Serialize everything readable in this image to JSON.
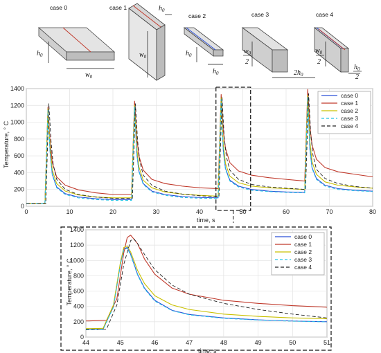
{
  "schematics": [
    {
      "title": "case 0",
      "dims": [
        "h0",
        "w0"
      ]
    },
    {
      "title": "case 1",
      "dims": [
        "h0",
        "w0"
      ]
    },
    {
      "title": "case 2",
      "dims": [
        "h0",
        "h0"
      ]
    },
    {
      "title": "case 3",
      "dims": [
        "w0/2",
        "2h0"
      ]
    },
    {
      "title": "case 4",
      "dims": [
        "w0/2",
        "h0/2"
      ]
    }
  ],
  "colors": {
    "case 0": "#2b4fd6",
    "case 1": "#c0392b",
    "case 2": "#c9c000",
    "case 3": "#27c3e6",
    "case 4": "#222222"
  },
  "chart_data": [
    {
      "type": "line",
      "xlabel": "time, s",
      "ylabel": "Temperature, ° C",
      "xlim": [
        0,
        80
      ],
      "ylim": [
        0,
        1400
      ],
      "xticks": [
        0,
        10,
        20,
        30,
        40,
        50,
        60,
        70,
        80
      ],
      "yticks": [
        0,
        200,
        400,
        600,
        800,
        1000,
        1200,
        1400
      ],
      "grid": true,
      "legend": "top-right",
      "series": [
        {
          "name": "case 0",
          "x": [
            0,
            4.3,
            5.0,
            5.5,
            6,
            7,
            9,
            12,
            16,
            20,
            24.3,
            25.0,
            25.5,
            26,
            27,
            29,
            32,
            36,
            40,
            44.3,
            45.0,
            45.5,
            46,
            47,
            49,
            52,
            56,
            60,
            64.3,
            65.0,
            65.5,
            66,
            67,
            69,
            72,
            76,
            80
          ],
          "y": [
            30,
            30,
            1150,
            640,
            380,
            230,
            150,
            110,
            90,
            80,
            80,
            1190,
            640,
            420,
            270,
            180,
            140,
            115,
            105,
            100,
            1280,
            660,
            450,
            310,
            240,
            200,
            180,
            170,
            165,
            1310,
            680,
            460,
            330,
            250,
            210,
            190,
            180
          ]
        },
        {
          "name": "case 1",
          "x": [
            0,
            4.3,
            5.0,
            5.5,
            6,
            7,
            9,
            12,
            16,
            20,
            24.3,
            25.0,
            25.5,
            26,
            27,
            29,
            32,
            36,
            40,
            44.3,
            45.0,
            45.5,
            46,
            47,
            49,
            52,
            56,
            60,
            64.3,
            65.0,
            65.5,
            66,
            67,
            69,
            72,
            76,
            80
          ],
          "y": [
            30,
            30,
            1180,
            760,
            520,
            350,
            250,
            195,
            160,
            140,
            140,
            1250,
            820,
            600,
            430,
            320,
            270,
            240,
            220,
            210,
            1330,
            900,
            690,
            520,
            420,
            370,
            340,
            320,
            300,
            1390,
            950,
            730,
            560,
            460,
            410,
            380,
            350
          ]
        },
        {
          "name": "case 2",
          "x": [
            0,
            4.3,
            5.0,
            5.5,
            6,
            7,
            9,
            12,
            16,
            20,
            24.3,
            25.0,
            25.5,
            26,
            27,
            29,
            32,
            36,
            40,
            44.3,
            45.0,
            45.5,
            46,
            47,
            49,
            52,
            56,
            60,
            64.3,
            65.0,
            65.5,
            66,
            67,
            69,
            72,
            76,
            80
          ],
          "y": [
            30,
            30,
            1160,
            680,
            430,
            270,
            180,
            135,
            110,
            100,
            100,
            1200,
            700,
            470,
            310,
            220,
            170,
            145,
            130,
            120,
            1290,
            740,
            510,
            360,
            280,
            240,
            220,
            210,
            200,
            1320,
            770,
            530,
            380,
            290,
            250,
            230,
            215
          ]
        },
        {
          "name": "case 3",
          "x": [
            0,
            4.3,
            5.0,
            5.5,
            6,
            7,
            9,
            12,
            16,
            20,
            24.3,
            25.0,
            25.5,
            26,
            27,
            29,
            32,
            36,
            40,
            44.3,
            45.0,
            45.5,
            46,
            47,
            49,
            52,
            56,
            60,
            64.3,
            65.0,
            65.5,
            66,
            67,
            69,
            72,
            76,
            80
          ],
          "y": [
            30,
            30,
            1140,
            630,
            370,
            220,
            140,
            100,
            80,
            70,
            70,
            1180,
            630,
            410,
            260,
            170,
            130,
            105,
            95,
            95,
            1270,
            650,
            440,
            300,
            230,
            190,
            175,
            165,
            160,
            1300,
            670,
            450,
            320,
            240,
            200,
            185,
            175
          ]
        },
        {
          "name": "case 4",
          "x": [
            0,
            4.5,
            5.2,
            5.7,
            6.2,
            7,
            9,
            12,
            16,
            20,
            24.5,
            25.2,
            25.7,
            26.2,
            27,
            29,
            32,
            36,
            40,
            44.5,
            45.2,
            45.7,
            46.2,
            47,
            49,
            52,
            56,
            60,
            64.5,
            65.2,
            65.7,
            66.2,
            67,
            69,
            72,
            76,
            80
          ],
          "y": [
            30,
            30,
            1220,
            780,
            500,
            320,
            200,
            140,
            110,
            95,
            95,
            1220,
            780,
            540,
            370,
            250,
            180,
            145,
            125,
            115,
            1300,
            820,
            590,
            430,
            320,
            260,
            230,
            215,
            200,
            1340,
            850,
            610,
            440,
            330,
            270,
            235,
            215
          ]
        }
      ]
    },
    {
      "type": "line",
      "xlabel": "time, s",
      "ylabel": "Temperature, ° C",
      "xlim": [
        44,
        51
      ],
      "ylim": [
        0,
        1400
      ],
      "xticks": [
        44,
        45,
        46,
        47,
        48,
        49,
        50,
        51
      ],
      "yticks": [
        0,
        200,
        400,
        600,
        800,
        1000,
        1200,
        1400
      ],
      "grid": true,
      "legend": "top-right",
      "series": [
        {
          "name": "case 0",
          "x": [
            44,
            44.5,
            44.8,
            45.0,
            45.1,
            45.2,
            45.3,
            45.5,
            45.7,
            46.0,
            46.5,
            47.0,
            48,
            49,
            50,
            51
          ],
          "y": [
            100,
            105,
            400,
            950,
            1150,
            1170,
            1080,
            820,
            640,
            480,
            350,
            295,
            250,
            225,
            210,
            200
          ]
        },
        {
          "name": "case 1",
          "x": [
            44,
            44.6,
            44.9,
            45.1,
            45.2,
            45.3,
            45.5,
            45.7,
            46.0,
            46.5,
            47.0,
            48,
            49,
            50,
            51
          ],
          "y": [
            210,
            220,
            500,
            1100,
            1300,
            1330,
            1220,
            1020,
            820,
            640,
            560,
            480,
            440,
            410,
            390
          ]
        },
        {
          "name": "case 2",
          "x": [
            44,
            44.5,
            44.8,
            45.0,
            45.1,
            45.2,
            45.3,
            45.5,
            45.7,
            46.0,
            46.5,
            47.0,
            48,
            49,
            50,
            51
          ],
          "y": [
            110,
            115,
            420,
            970,
            1170,
            1190,
            1110,
            870,
            700,
            540,
            420,
            360,
            300,
            270,
            250,
            240
          ]
        },
        {
          "name": "case 3",
          "x": [
            44,
            44.5,
            44.8,
            45.0,
            45.1,
            45.2,
            45.3,
            45.5,
            45.7,
            46.0,
            46.5,
            47.0,
            48,
            49,
            50,
            51
          ],
          "y": [
            95,
            100,
            390,
            940,
            1140,
            1160,
            1070,
            810,
            630,
            470,
            345,
            290,
            245,
            222,
            208,
            198
          ]
        },
        {
          "name": "case 4",
          "x": [
            44,
            44.6,
            44.9,
            45.1,
            45.3,
            45.4,
            45.5,
            45.7,
            46.0,
            46.5,
            47.0,
            48,
            49,
            50,
            51
          ],
          "y": [
            100,
            105,
            420,
            950,
            1260,
            1280,
            1220,
            1080,
            880,
            680,
            560,
            440,
            360,
            300,
            250
          ]
        }
      ]
    }
  ]
}
